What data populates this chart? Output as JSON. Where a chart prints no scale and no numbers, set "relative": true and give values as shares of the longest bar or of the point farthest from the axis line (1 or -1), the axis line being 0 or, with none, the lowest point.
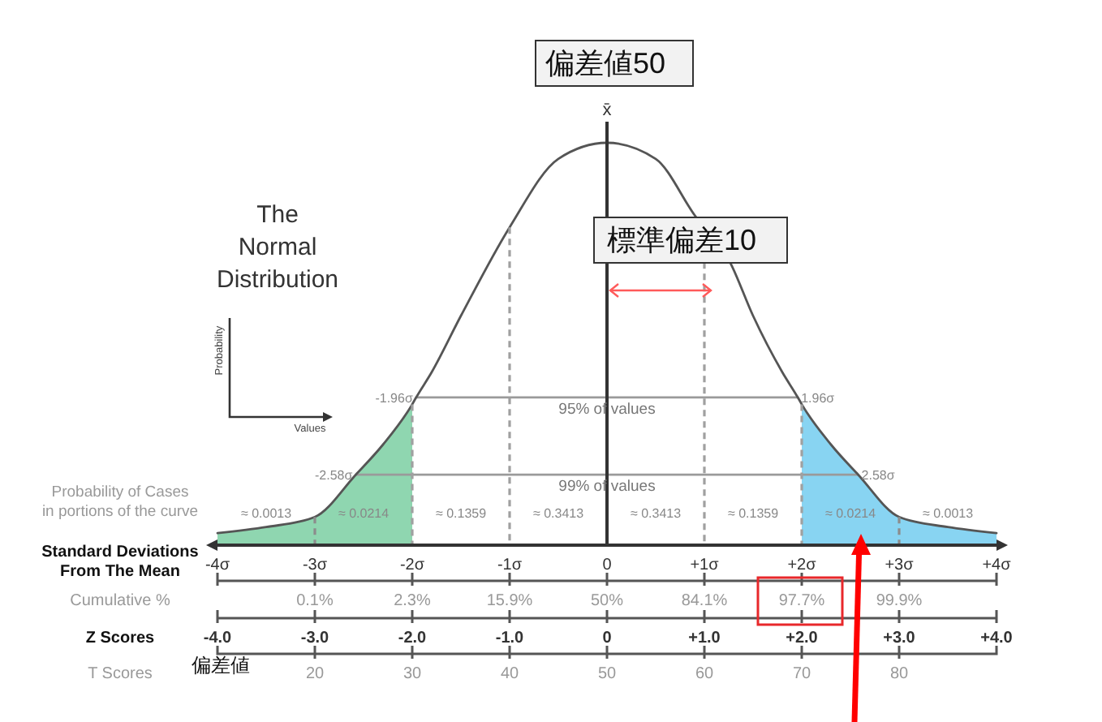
{
  "chart_data": {
    "type": "line",
    "title": "The\nNormal\nDistribution",
    "relative": true,
    "xlabel": "Standard Deviations\nFrom The Mean",
    "xlim": [
      -4,
      4
    ],
    "xticks": [
      {
        "value": -4,
        "label": "-4σ"
      },
      {
        "value": -3,
        "label": "-3σ"
      },
      {
        "value": -2,
        "label": "-2σ"
      },
      {
        "value": -1,
        "label": "-1σ"
      },
      0,
      {
        "value": 1,
        "label": "+1σ"
      },
      {
        "value": 2,
        "label": "+2σ"
      },
      {
        "value": 3,
        "label": "+3σ"
      },
      {
        "value": 4,
        "label": "+4σ"
      }
    ],
    "x2label": "T Scores",
    "x2lim": [
      10,
      90
    ],
    "x2ticks": [
      20,
      30,
      40,
      50,
      60,
      70,
      80
    ],
    "series": [
      {
        "type": "area",
        "color": "#8fd6b0",
        "x": [
          -4,
          -3.5,
          -3,
          -2.58,
          -2.3,
          -2
        ],
        "values": [
          0.03,
          0.045,
          0.07,
          0.175,
          0.25,
          0.35
        ]
      },
      {
        "type": "area",
        "color": "#88d4f2",
        "x": [
          2,
          2.3,
          2.58,
          3,
          3.5,
          4
        ],
        "values": [
          0.35,
          0.25,
          0.175,
          0.07,
          0.045,
          0.03
        ]
      },
      {
        "type": "line",
        "color": "#9a9a9a",
        "x": [
          -1.96,
          1.96
        ],
        "values": [
          0.367,
          0.367
        ]
      },
      {
        "type": "line",
        "color": "#9a9a9a",
        "x": [
          -2.58,
          2.58
        ],
        "values": [
          0.175,
          0.175
        ]
      },
      {
        "color": "#555555",
        "x": [
          -4,
          -3.5,
          -3,
          -2.58,
          -2.3,
          -2,
          -1.96,
          -1.8,
          -1.5,
          -1,
          -0.5,
          0,
          0.5,
          0.9,
          1.27,
          1.5,
          1.8,
          1.96,
          2,
          2.3,
          2.58,
          3,
          3.5,
          4
        ],
        "values": [
          0.03,
          0.045,
          0.07,
          0.175,
          0.25,
          0.35,
          0.367,
          0.43,
          0.57,
          0.79,
          0.96,
          1,
          0.96,
          0.82,
          0.7,
          0.57,
          0.43,
          0.367,
          0.35,
          0.25,
          0.175,
          0.07,
          0.045,
          0.03
        ]
      }
    ],
    "ref_lines": [
      {
        "axis": "x",
        "value": 0,
        "label": "x̄",
        "color": "#333333"
      },
      {
        "axis": "x",
        "value": -1,
        "color": "#a0a0a0",
        "line_style": "dashed"
      },
      {
        "axis": "x",
        "value": 1,
        "color": "#a0a0a0",
        "line_style": "dashed"
      },
      {
        "axis": "x",
        "value": -2,
        "color": "#a0a0a0",
        "line_style": "dashed"
      },
      {
        "axis": "x",
        "value": 2,
        "color": "#a0a0a0",
        "line_style": "dashed"
      }
    ],
    "annotations": [
      {
        "text": "-1.96σ",
        "x": -1.96,
        "y": 0.367
      },
      {
        "text": "1.96σ",
        "x": 1.96,
        "y": 0.367
      },
      {
        "text": "95% of values",
        "x": 0,
        "y": 0.367
      },
      {
        "text": "-2.58σ",
        "x": -2.58,
        "y": 0.175
      },
      {
        "text": "2.58σ",
        "x": 2.58,
        "y": 0.175
      },
      {
        "text": "99% of values",
        "x": 0,
        "y": 0.175
      },
      "Probability of Cases\nin portions of the curve",
      "Probability",
      "Values",
      "偏差値",
      "偏差値50",
      "標準偏差10",
      "Cumulative %",
      "0.1%",
      "2.3%",
      "15.9%",
      "50%",
      "84.1%",
      "97.7%",
      "99.9%",
      "Z Scores",
      "-4.0",
      "-3.0",
      "-2.0",
      "-1.0",
      "0",
      "+1.0",
      "+2.0",
      "+3.0",
      "+4.0",
      "≈ 0.0013",
      "≈ 0.0214",
      "≈ 0.1359",
      "≈ 0.3413",
      "≈ 0.3413",
      "≈ 0.1359",
      "≈ 0.0214",
      "≈ 0.0013"
    ]
  }
}
